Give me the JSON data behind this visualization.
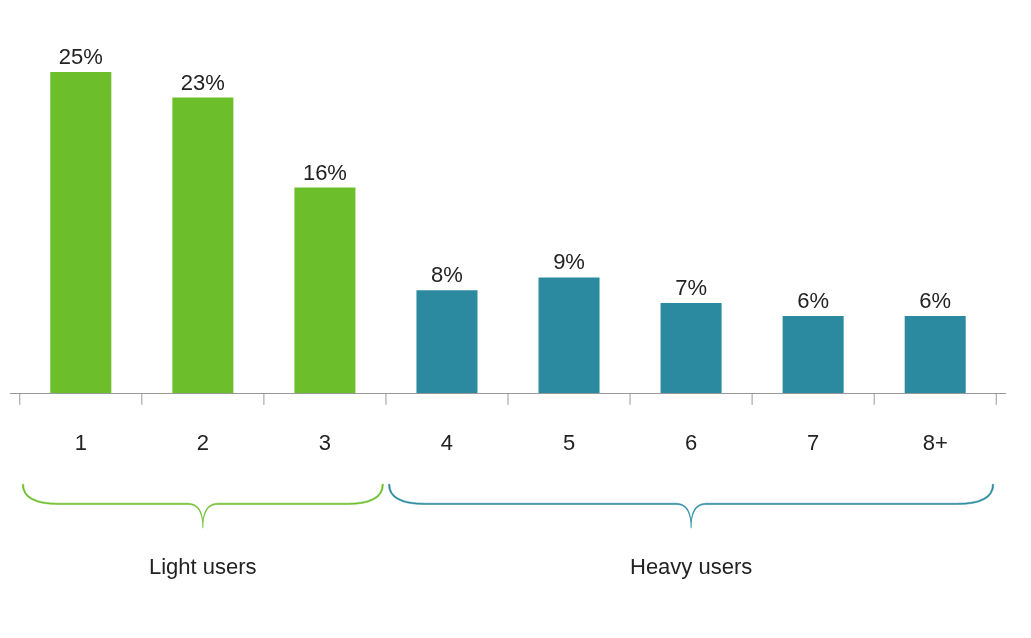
{
  "chart_data": {
    "type": "bar",
    "categories": [
      "1",
      "2",
      "3",
      "4",
      "5",
      "6",
      "7",
      "8+"
    ],
    "values": [
      25,
      23,
      16,
      8,
      9,
      7,
      6,
      6
    ],
    "value_labels": [
      "25%",
      "23%",
      "16%",
      "8%",
      "9%",
      "7%",
      "6%",
      "6%"
    ],
    "colors": [
      "#6cbf2a",
      "#6cbf2a",
      "#6cbf2a",
      "#2b8aa0",
      "#2b8aa0",
      "#2b8aa0",
      "#2b8aa0",
      "#2b8aa0"
    ],
    "annotations": [
      "Light users",
      "Heavy users"
    ]
  }
}
